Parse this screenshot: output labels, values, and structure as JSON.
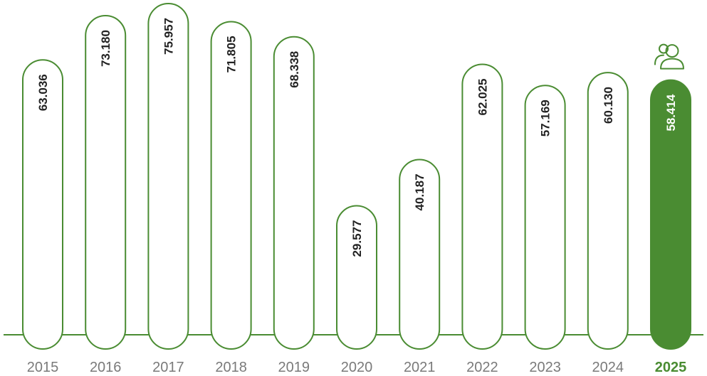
{
  "chart_data": {
    "type": "bar",
    "title": "",
    "xlabel": "",
    "ylabel": "",
    "categories": [
      "2015",
      "2016",
      "2017",
      "2018",
      "2019",
      "2020",
      "2021",
      "2022",
      "2023",
      "2024",
      "2025"
    ],
    "values": [
      63036,
      73180,
      75957,
      71805,
      68338,
      29577,
      40187,
      62025,
      57169,
      60130,
      58414
    ],
    "value_labels": [
      "63.036",
      "73.180",
      "75.957",
      "71.805",
      "68.338",
      "29.577",
      "40.187",
      "62.025",
      "57.169",
      "60.130",
      "58.414"
    ],
    "highlight_index": 10,
    "highlight_icon": "people-icon",
    "ylim": [
      0,
      80000
    ],
    "grid": false,
    "colors": {
      "outline": "#4a8c32",
      "highlight_fill": "#4a8c32",
      "value_text": "#222222",
      "highlight_value_text": "#ffffff",
      "year_text": "#7a7a7a",
      "highlight_year_text": "#4a8c32"
    }
  }
}
